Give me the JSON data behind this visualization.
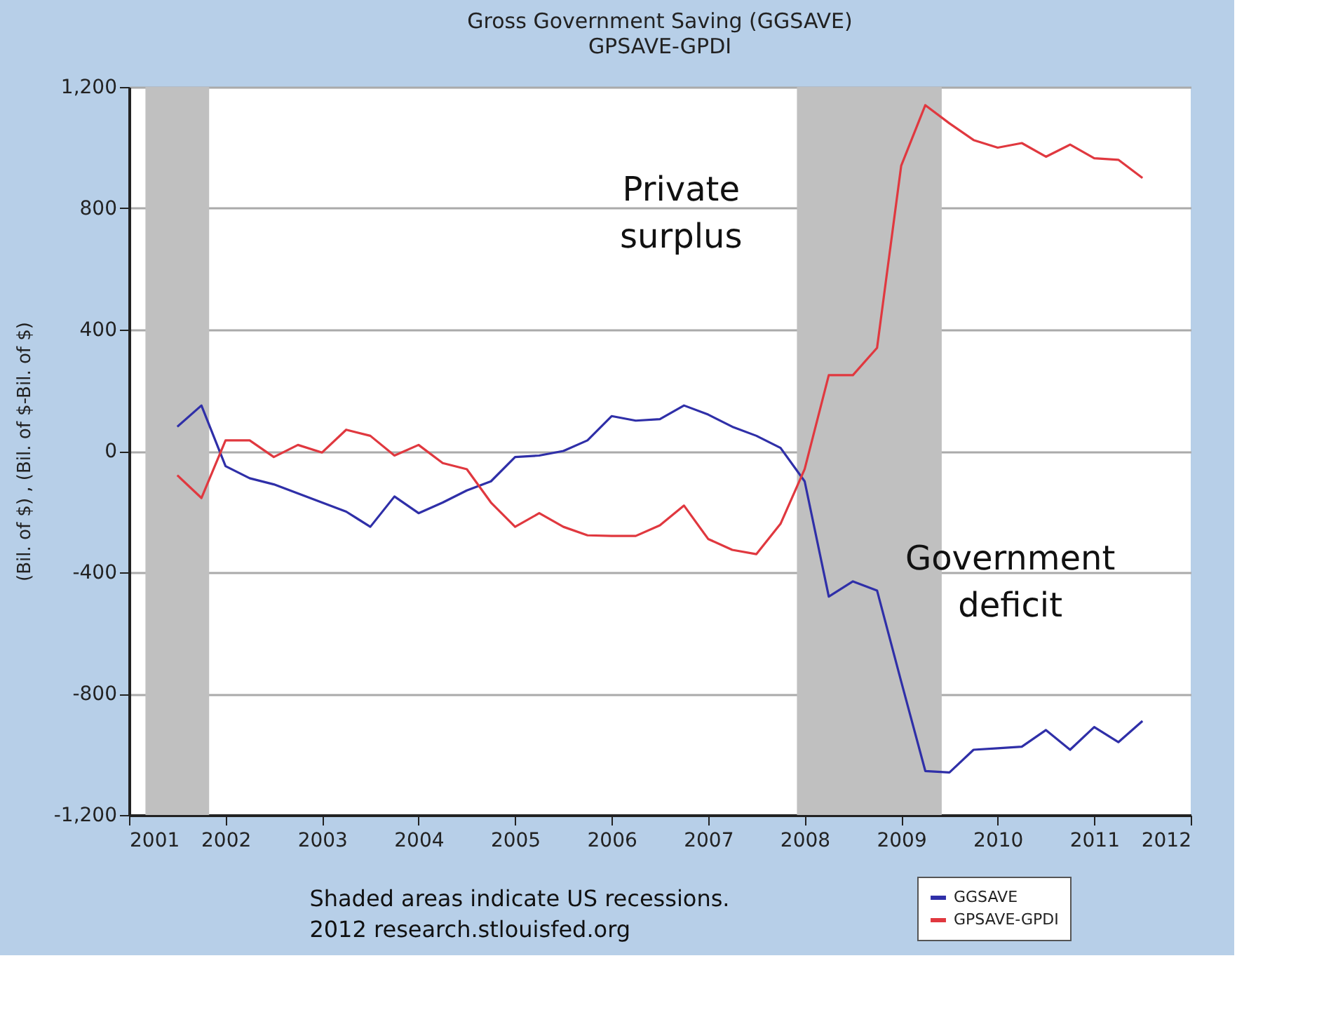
{
  "chart_data": {
    "type": "line",
    "title": "Gross Government Saving (GGSAVE)",
    "subtitle": "GPSAVE-GPDI",
    "ylabel": "(Bil. of $) , (Bil. of $-Bil. of $)",
    "x": [
      2001.5,
      2001.75,
      2002,
      2002.25,
      2002.5,
      2002.75,
      2003,
      2003.25,
      2003.5,
      2003.75,
      2004,
      2004.25,
      2004.5,
      2004.75,
      2005,
      2005.25,
      2005.5,
      2005.75,
      2006,
      2006.25,
      2006.5,
      2006.75,
      2007,
      2007.25,
      2007.5,
      2007.75,
      2008,
      2008.25,
      2008.5,
      2008.75,
      2009,
      2009.25,
      2009.5,
      2009.75,
      2010,
      2010.25,
      2010.5,
      2010.75,
      2011,
      2011.25,
      2011.5
    ],
    "series": [
      {
        "name": "GGSAVE",
        "color": "#2f2fa8",
        "values": [
          80,
          150,
          -50,
          -90,
          -110,
          -140,
          -170,
          -200,
          -250,
          -150,
          -205,
          -170,
          -130,
          -100,
          -20,
          -15,
          0,
          35,
          115,
          100,
          105,
          150,
          120,
          80,
          50,
          10,
          -100,
          -480,
          -430,
          -460,
          -760,
          -1055,
          -1060,
          -985,
          -980,
          -975,
          -920,
          -985,
          -910,
          -960,
          -890
        ]
      },
      {
        "name": "GPSAVE-GPDI",
        "color": "#e0383f",
        "values": [
          -80,
          -155,
          35,
          35,
          -20,
          20,
          -5,
          70,
          50,
          -15,
          20,
          -40,
          -60,
          -170,
          -250,
          -205,
          -250,
          -278,
          -280,
          -280,
          -245,
          -180,
          -290,
          -326,
          -340,
          -240,
          -60,
          250,
          250,
          340,
          940,
          1140,
          1080,
          1025,
          1000,
          1015,
          970,
          1010,
          965,
          960,
          900
        ]
      }
    ],
    "xlim": [
      2001,
      2012
    ],
    "xticks": [
      2001,
      2002,
      2003,
      2004,
      2005,
      2006,
      2007,
      2008,
      2009,
      2010,
      2011,
      2012
    ],
    "ylim": [
      -1200,
      1200
    ],
    "yticks": [
      {
        "value": -1200,
        "label": "-1,200"
      },
      -800,
      -400,
      0,
      400,
      800,
      {
        "value": 1200,
        "label": "1,200"
      }
    ],
    "bands": [
      {
        "axis": "x",
        "from": 2001.17,
        "to": 2001.83,
        "color": "#c0c0c0"
      },
      {
        "axis": "x",
        "from": 2007.92,
        "to": 2009.42,
        "color": "#c0c0c0"
      }
    ],
    "annotations": [
      "Private surplus",
      "Government deficit",
      "Shaded areas indicate US recessions.",
      "2012 research.stlouisfed.org"
    ],
    "grid": "y",
    "legend": "bottom right",
    "line_style": "solid",
    "marker": "none"
  }
}
